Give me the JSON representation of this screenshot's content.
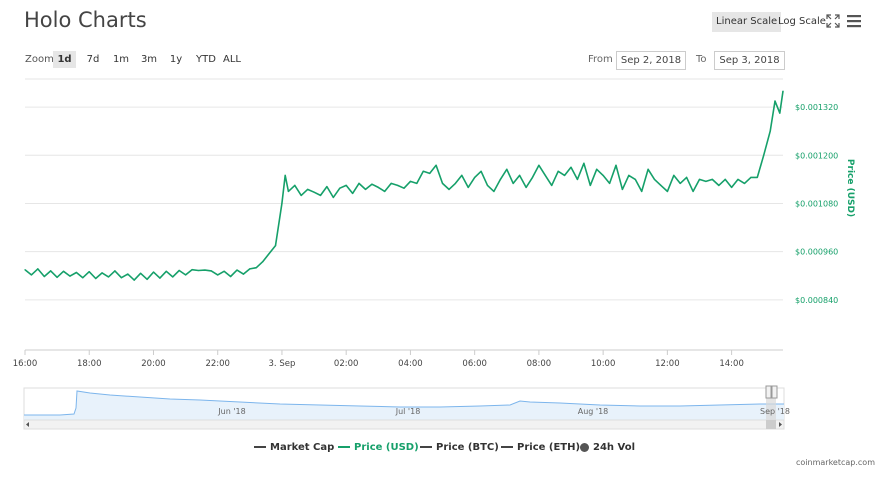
{
  "header": {
    "title": "Holo Charts",
    "linear_scale": "Linear Scale",
    "log_scale": "Log Scale"
  },
  "zoom": {
    "label": "Zoom",
    "buttons": [
      "1d",
      "7d",
      "1m",
      "3m",
      "1y",
      "YTD",
      "ALL"
    ],
    "active": "1d"
  },
  "range": {
    "from_label": "From",
    "from_value": "Sep 2, 2018",
    "to_label": "To",
    "to_value": "Sep 3, 2018"
  },
  "legend": [
    {
      "label": "Market Cap",
      "color": "#444444",
      "kind": "line"
    },
    {
      "label": "Price (USD)",
      "color": "#16a06a",
      "kind": "line",
      "active": true
    },
    {
      "label": "Price (BTC)",
      "color": "#444444",
      "kind": "line"
    },
    {
      "label": "Price (ETH)",
      "color": "#444444",
      "kind": "line"
    },
    {
      "label": "24h Vol",
      "color": "#555555",
      "kind": "dot"
    }
  ],
  "credit": "coinmarketcap.com",
  "navigator": {
    "labels": [
      "Jun '18",
      "Jul '18",
      "Aug '18",
      "Sep '18"
    ]
  },
  "chart_data": {
    "type": "line",
    "title": "Holo Charts",
    "ylabel": "Price (USD)",
    "y_axis_position": "right",
    "y_ticks": [
      "$0.000840",
      "$0.000960",
      "$0.001080",
      "$0.001200",
      "$0.001320"
    ],
    "y_tick_values": [
      0.00084,
      0.00096,
      0.00108,
      0.0012,
      0.00132
    ],
    "ylim": [
      0.000715,
      0.001395
    ],
    "x_ticks": [
      "16:00",
      "18:00",
      "20:00",
      "22:00",
      "3. Sep",
      "02:00",
      "04:00",
      "06:00",
      "08:00",
      "10:00",
      "12:00",
      "14:00"
    ],
    "x_tick_hours": [
      0,
      2,
      4,
      6,
      8,
      10,
      12,
      14,
      16,
      18,
      20,
      22
    ],
    "xlim_hours": [
      0,
      23.6
    ],
    "grid": true,
    "color": "#16a06a",
    "series": [
      {
        "name": "Price (USD)",
        "points": [
          [
            0,
            0.000915
          ],
          [
            0.2,
            0.000902
          ],
          [
            0.4,
            0.000917
          ],
          [
            0.6,
            0.000898
          ],
          [
            0.8,
            0.000912
          ],
          [
            1.0,
            0.000896
          ],
          [
            1.2,
            0.000911
          ],
          [
            1.4,
            0.000899
          ],
          [
            1.6,
            0.000908
          ],
          [
            1.8,
            0.000895
          ],
          [
            2.0,
            0.00091
          ],
          [
            2.2,
            0.000893
          ],
          [
            2.4,
            0.000907
          ],
          [
            2.6,
            0.000897
          ],
          [
            2.8,
            0.000912
          ],
          [
            3.0,
            0.000895
          ],
          [
            3.2,
            0.000904
          ],
          [
            3.4,
            0.000889
          ],
          [
            3.6,
            0.000906
          ],
          [
            3.8,
            0.000891
          ],
          [
            4.0,
            0.000909
          ],
          [
            4.2,
            0.000894
          ],
          [
            4.4,
            0.000911
          ],
          [
            4.6,
            0.000897
          ],
          [
            4.8,
            0.000913
          ],
          [
            5.0,
            0.000902
          ],
          [
            5.2,
            0.000915
          ],
          [
            5.4,
            0.000913
          ],
          [
            5.6,
            0.000914
          ],
          [
            5.8,
            0.000912
          ],
          [
            6.0,
            0.000902
          ],
          [
            6.2,
            0.000911
          ],
          [
            6.4,
            0.000898
          ],
          [
            6.6,
            0.000914
          ],
          [
            6.8,
            0.000904
          ],
          [
            7.0,
            0.000917
          ],
          [
            7.2,
            0.00092
          ],
          [
            7.4,
            0.000935
          ],
          [
            7.6,
            0.000955
          ],
          [
            7.8,
            0.000975
          ],
          [
            8.0,
            0.00108
          ],
          [
            8.1,
            0.00115
          ],
          [
            8.2,
            0.00111
          ],
          [
            8.4,
            0.001125
          ],
          [
            8.6,
            0.0011
          ],
          [
            8.8,
            0.001115
          ],
          [
            9.0,
            0.001108
          ],
          [
            9.2,
            0.0011
          ],
          [
            9.4,
            0.001122
          ],
          [
            9.6,
            0.001095
          ],
          [
            9.8,
            0.001118
          ],
          [
            10.0,
            0.001125
          ],
          [
            10.2,
            0.001105
          ],
          [
            10.4,
            0.00113
          ],
          [
            10.6,
            0.001115
          ],
          [
            10.8,
            0.001128
          ],
          [
            11.0,
            0.00112
          ],
          [
            11.2,
            0.00111
          ],
          [
            11.4,
            0.00113
          ],
          [
            11.6,
            0.001125
          ],
          [
            11.8,
            0.001118
          ],
          [
            12.0,
            0.001135
          ],
          [
            12.2,
            0.00113
          ],
          [
            12.4,
            0.00116
          ],
          [
            12.6,
            0.001155
          ],
          [
            12.8,
            0.001175
          ],
          [
            13.0,
            0.00113
          ],
          [
            13.2,
            0.001115
          ],
          [
            13.4,
            0.00113
          ],
          [
            13.6,
            0.00115
          ],
          [
            13.8,
            0.00112
          ],
          [
            14.0,
            0.001145
          ],
          [
            14.2,
            0.00116
          ],
          [
            14.4,
            0.001125
          ],
          [
            14.6,
            0.00111
          ],
          [
            14.8,
            0.00114
          ],
          [
            15.0,
            0.001165
          ],
          [
            15.2,
            0.00113
          ],
          [
            15.4,
            0.00115
          ],
          [
            15.6,
            0.00112
          ],
          [
            15.8,
            0.001145
          ],
          [
            16.0,
            0.001175
          ],
          [
            16.2,
            0.00115
          ],
          [
            16.4,
            0.001125
          ],
          [
            16.6,
            0.00116
          ],
          [
            16.8,
            0.00115
          ],
          [
            17.0,
            0.00117
          ],
          [
            17.2,
            0.00114
          ],
          [
            17.4,
            0.00118
          ],
          [
            17.6,
            0.001125
          ],
          [
            17.8,
            0.001165
          ],
          [
            18.0,
            0.00115
          ],
          [
            18.2,
            0.00113
          ],
          [
            18.4,
            0.001175
          ],
          [
            18.6,
            0.001115
          ],
          [
            18.8,
            0.00115
          ],
          [
            19.0,
            0.00114
          ],
          [
            19.2,
            0.00111
          ],
          [
            19.4,
            0.001165
          ],
          [
            19.6,
            0.00114
          ],
          [
            19.8,
            0.001125
          ],
          [
            20.0,
            0.00111
          ],
          [
            20.2,
            0.00115
          ],
          [
            20.4,
            0.00113
          ],
          [
            20.6,
            0.001145
          ],
          [
            20.8,
            0.00111
          ],
          [
            21.0,
            0.00114
          ],
          [
            21.2,
            0.001135
          ],
          [
            21.4,
            0.00114
          ],
          [
            21.6,
            0.001125
          ],
          [
            21.8,
            0.00114
          ],
          [
            22.0,
            0.00112
          ],
          [
            22.2,
            0.00114
          ],
          [
            22.4,
            0.00113
          ],
          [
            22.6,
            0.001145
          ],
          [
            22.8,
            0.001145
          ],
          [
            23.0,
            0.0012
          ],
          [
            23.2,
            0.00126
          ],
          [
            23.35,
            0.001335
          ],
          [
            23.5,
            0.001305
          ],
          [
            23.6,
            0.00136
          ]
        ]
      }
    ]
  }
}
